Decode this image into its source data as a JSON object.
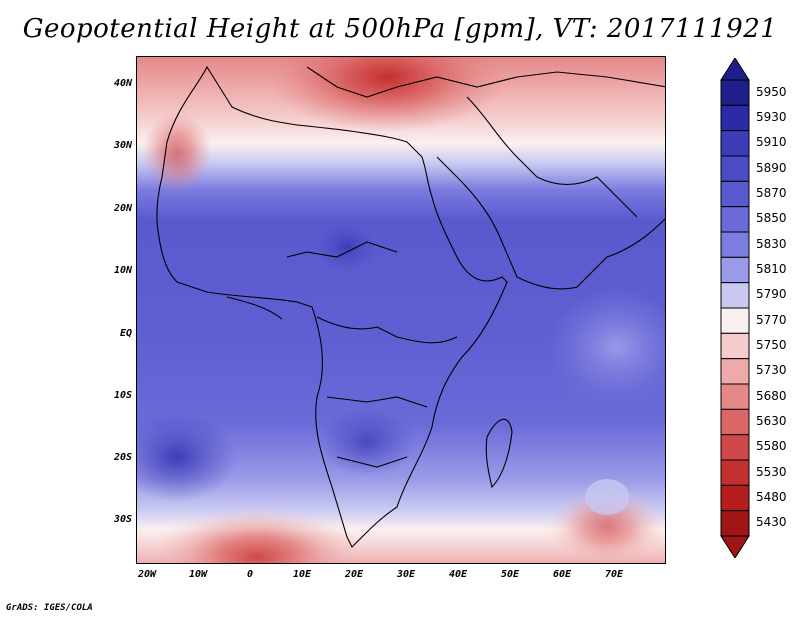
{
  "title": "Geopotential Height at 500hPa [gpm], VT: 2017111921",
  "footer": "GrADS: IGES/COLA",
  "map": {
    "lon_labels": [
      "20W",
      "10W",
      "0",
      "10E",
      "20E",
      "30E",
      "40E",
      "50E",
      "60E",
      "70E"
    ],
    "lat_labels": [
      "40N",
      "30N",
      "20N",
      "10N",
      "EQ",
      "10S",
      "20S",
      "30S"
    ]
  },
  "colorbar": {
    "levels": [
      "5950",
      "5930",
      "5910",
      "5890",
      "5870",
      "5850",
      "5830",
      "5810",
      "5790",
      "5770",
      "5750",
      "5730",
      "5680",
      "5630",
      "5580",
      "5530",
      "5480",
      "5430"
    ],
    "colors": [
      "#1f1f8c",
      "#2b2ba8",
      "#3d3db8",
      "#4b4bc4",
      "#5a5acf",
      "#6a6ad8",
      "#7d7de0",
      "#9a9ae8",
      "#c8c8f2",
      "#fbf0f0",
      "#f5cccc",
      "#eeaaaa",
      "#e48888",
      "#db6666",
      "#d14848",
      "#c43030",
      "#b51e1e",
      "#a01515"
    ]
  }
}
